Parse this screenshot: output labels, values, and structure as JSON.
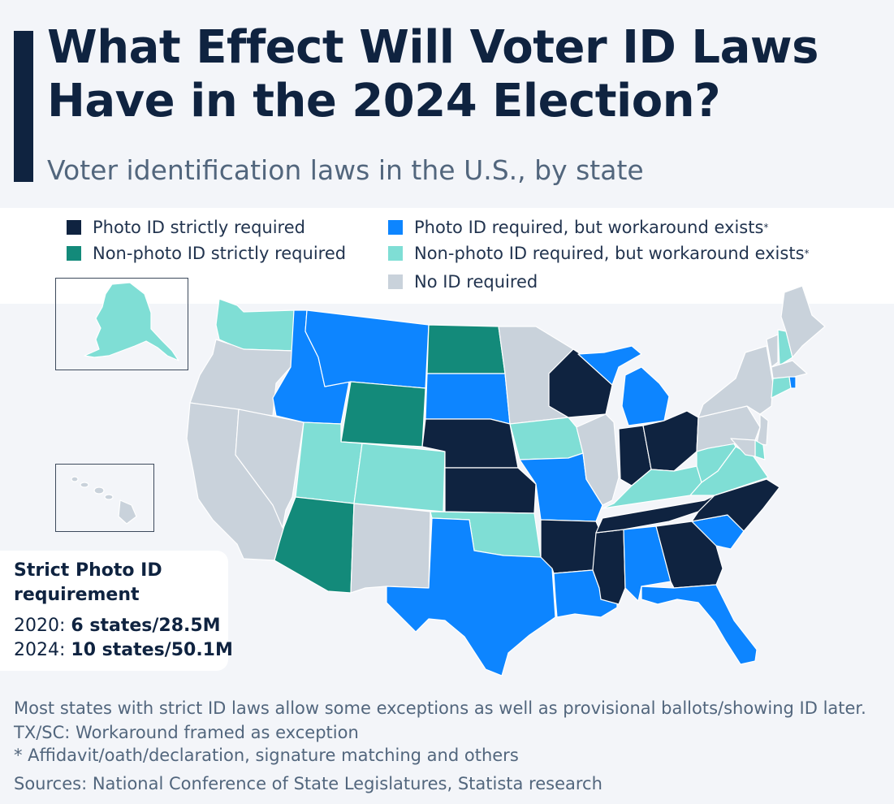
{
  "header": {
    "title_line1": "What Effect Will Voter ID Laws",
    "title_line2": "Have in the 2024 Election?",
    "subtitle": "Voter identification laws in the U.S., by state"
  },
  "legend": {
    "photo_strict": "Photo ID strictly required",
    "nonphoto_strict": "Non-photo ID strictly required",
    "photo_workaround": "Photo ID required, but workaround exists",
    "nonphoto_workaround": "Non-photo ID required, but workaround exists",
    "asterisk": "*",
    "no_id": "No ID required"
  },
  "colors": {
    "photo_strict": "#0f2340",
    "nonphoto_strict": "#138a7a",
    "photo_workaround": "#0d85ff",
    "nonphoto_workaround": "#7fded5",
    "no_id": "#c9d2db",
    "background": "#f3f5f9"
  },
  "stats": {
    "title": "Strict Photo ID requirement",
    "row2020_label": "2020: ",
    "row2020_value": "6 states/28.5M",
    "row2024_label": "2024: ",
    "row2024_value": "10 states/50.1M"
  },
  "footnotes": {
    "note1": "Most states with strict ID laws allow some exceptions as well as provisional ballots/showing ID later.",
    "note2": "TX/SC: Workaround framed as exception",
    "note3": "* Affidavit/oath/declaration, signature matching and others",
    "sources": "Sources: National Conference of State Legislatures, Statista research"
  }
}
